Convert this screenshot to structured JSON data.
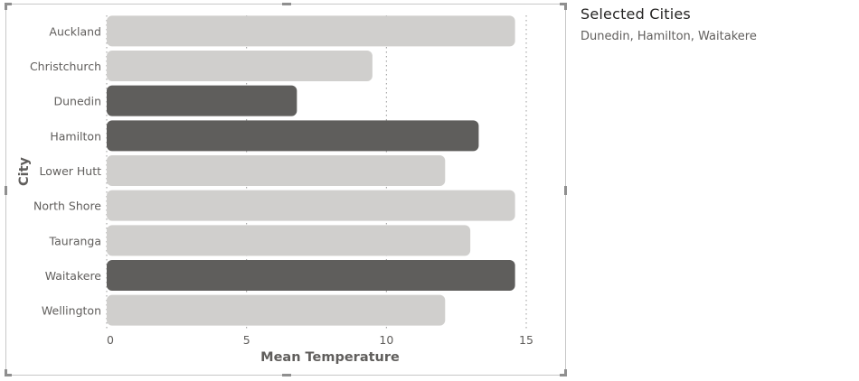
{
  "chart_data": {
    "type": "bar",
    "orientation": "horizontal",
    "categories": [
      "Auckland",
      "Christchurch",
      "Dunedin",
      "Hamilton",
      "Lower Hutt",
      "North Shore",
      "Tauranga",
      "Waitakere",
      "Wellington"
    ],
    "values": [
      14.6,
      9.5,
      6.8,
      13.3,
      12.1,
      14.6,
      13.0,
      14.6,
      12.1
    ],
    "highlighted": [
      false,
      false,
      true,
      true,
      false,
      false,
      false,
      true,
      false
    ],
    "xlabel": "Mean Temperature",
    "ylabel": "City",
    "xlim": [
      0,
      15
    ],
    "xticks": [
      0,
      5,
      10,
      15
    ],
    "grid": "vertical-dotted",
    "colors": {
      "highlight": "#5f5e5c",
      "normal": "#d0cfcd",
      "grid": "#9a9a9a",
      "text": "#605e5c",
      "axis_title": "#605e5c"
    }
  },
  "side_panel": {
    "title": "Selected Cities",
    "values": "Dunedin, Hamilton, Waitakere"
  }
}
